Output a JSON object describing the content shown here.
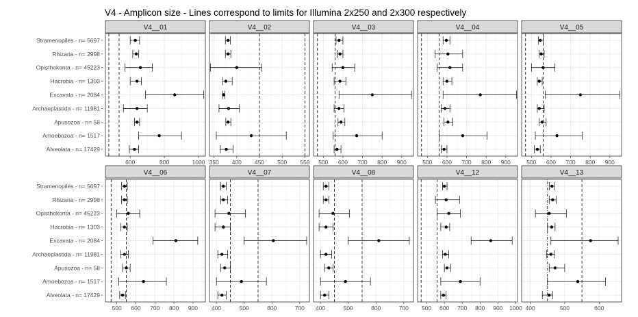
{
  "chart_data": {
    "type": "errorbar-facet",
    "title": "V4 - Amplicon size - Lines correspond to limits for Illumina 2x250 and 2x300 respectively",
    "categories": [
      "Stramenopiles - n= 5697",
      "Rhizaria - n= 2998",
      "Opisthokonta - n= 45223",
      "Hacrobia - n= 1303",
      "Excavata - n= 2084",
      "Archaeplastida - n= 11981",
      "Apusozoa - n= 58",
      "Amoebozoa - n= 1517",
      "Alveolata - n= 17429"
    ],
    "grid": true,
    "panels": [
      {
        "name": "V4__01",
        "xlim": [
          455,
          1040
        ],
        "xticks": [
          600,
          800,
          1000
        ],
        "xtick_labels": [
          "600",
          "800",
          "1000"
        ],
        "vlines": [
          {
            "x": 475,
            "style": "dashed"
          },
          {
            "x": 535,
            "style": "dashed"
          }
        ],
        "mean": [
          630,
          635,
          660,
          640,
          860,
          640,
          640,
          770,
          625
        ],
        "min": [
          600,
          615,
          570,
          600,
          690,
          560,
          625,
          650,
          595
        ],
        "max": [
          655,
          650,
          730,
          665,
          1030,
          700,
          655,
          900,
          650
        ]
      },
      {
        "name": "V4__02",
        "xlim": [
          340,
          560
        ],
        "xticks": [
          350,
          400,
          450,
          500,
          550
        ],
        "xtick_labels": [
          "350",
          "400",
          "450",
          "500",
          "550"
        ],
        "vlines": [
          {
            "x": 450,
            "style": "dashed"
          },
          {
            "x": 550,
            "style": "dashed"
          }
        ],
        "mean": [
          381,
          381,
          400,
          376,
          371,
          382,
          381,
          432,
          377
        ],
        "min": [
          375,
          375,
          342,
          369,
          369,
          361,
          376,
          355,
          364
        ],
        "max": [
          386,
          387,
          455,
          390,
          374,
          406,
          387,
          509,
          392
        ]
      },
      {
        "name": "V4__03",
        "xlim": [
          450,
          960
        ],
        "xticks": [
          500,
          600,
          700,
          800,
          900
        ],
        "xtick_labels": [
          "500",
          "600",
          "700",
          "800",
          "900"
        ],
        "vlines": [
          {
            "x": 470,
            "style": "dashed"
          },
          {
            "x": 560,
            "style": "dashed"
          }
        ],
        "mean": [
          580,
          585,
          600,
          585,
          750,
          580,
          590,
          670,
          570
        ],
        "min": [
          565,
          570,
          545,
          555,
          580,
          555,
          575,
          550,
          555
        ],
        "max": [
          600,
          600,
          660,
          615,
          950,
          605,
          610,
          800,
          590
        ]
      },
      {
        "name": "V4__04",
        "xlim": [
          450,
          960
        ],
        "xticks": [
          500,
          600,
          700,
          800,
          900
        ],
        "xtick_labels": [
          "500",
          "600",
          "700",
          "800",
          "900"
        ],
        "vlines": [
          {
            "x": 470,
            "style": "dashed"
          },
          {
            "x": 560,
            "style": "dashed"
          }
        ],
        "mean": [
          597,
          605,
          615,
          600,
          770,
          590,
          605,
          680,
          585
        ],
        "min": [
          580,
          540,
          550,
          580,
          580,
          570,
          585,
          560,
          570
        ],
        "max": [
          615,
          680,
          680,
          625,
          955,
          615,
          630,
          805,
          600
        ]
      },
      {
        "name": "V4__05",
        "xlim": [
          450,
          960
        ],
        "xticks": [
          500,
          600,
          700,
          800,
          900
        ],
        "xtick_labels": [
          "500",
          "600",
          "700",
          "800",
          "900"
        ],
        "vlines": [
          {
            "x": 470,
            "style": "dashed"
          },
          {
            "x": 560,
            "style": "dashed"
          }
        ],
        "mean": [
          545,
          550,
          560,
          540,
          750,
          540,
          555,
          630,
          530
        ],
        "min": [
          535,
          540,
          500,
          530,
          570,
          530,
          540,
          520,
          515
        ],
        "max": [
          560,
          565,
          620,
          555,
          950,
          565,
          575,
          760,
          545
        ]
      },
      {
        "name": "V4__06",
        "xlim": [
          440,
          965
        ],
        "xticks": [
          500,
          600,
          700,
          800,
          900
        ],
        "xtick_labels": [
          "500",
          "600",
          "700",
          "800",
          "900"
        ],
        "vlines": [
          {
            "x": 470,
            "style": "dashed"
          },
          {
            "x": 550,
            "style": "dashed"
          }
        ],
        "mean": [
          540,
          540,
          560,
          540,
          810,
          540,
          550,
          640,
          530
        ],
        "min": [
          525,
          525,
          500,
          520,
          690,
          520,
          530,
          510,
          515
        ],
        "max": [
          555,
          555,
          620,
          555,
          925,
          560,
          570,
          760,
          545
        ]
      },
      {
        "name": "V4__07",
        "xlim": [
          375,
          735
        ],
        "xticks": [
          400,
          500,
          600,
          700
        ],
        "xtick_labels": [
          "400",
          "500",
          "600",
          "700"
        ],
        "vlines": [
          {
            "x": 450,
            "style": "dashed"
          },
          {
            "x": 550,
            "style": "dashed"
          }
        ],
        "mean": [
          425,
          425,
          445,
          425,
          605,
          420,
          430,
          490,
          420
        ],
        "min": [
          415,
          415,
          395,
          395,
          500,
          405,
          415,
          400,
          405
        ],
        "max": [
          435,
          440,
          505,
          450,
          725,
          440,
          450,
          580,
          435
        ]
      },
      {
        "name": "V4__08",
        "xlim": [
          375,
          735
        ],
        "xticks": [
          400,
          500,
          600,
          700
        ],
        "xtick_labels": [
          "400",
          "500",
          "600",
          "700"
        ],
        "vlines": [
          {
            "x": 450,
            "style": "dashed"
          },
          {
            "x": 550,
            "style": "dashed"
          }
        ],
        "mean": [
          420,
          420,
          445,
          420,
          610,
          420,
          430,
          490,
          415
        ],
        "min": [
          410,
          410,
          395,
          395,
          500,
          400,
          415,
          400,
          400
        ],
        "max": [
          430,
          430,
          505,
          445,
          720,
          440,
          445,
          580,
          430
        ]
      },
      {
        "name": "V4__12",
        "xlim": [
          450,
          1010
        ],
        "xticks": [
          500,
          600,
          700,
          800,
          900,
          1000
        ],
        "xtick_labels": [
          "500",
          "600",
          "700",
          "800",
          "900",
          "1000"
        ],
        "vlines": [
          {
            "x": 470,
            "style": "dashed"
          },
          {
            "x": 560,
            "style": "dashed"
          }
        ],
        "mean": [
          600,
          610,
          625,
          610,
          860,
          605,
          615,
          690,
          595
        ],
        "min": [
          590,
          550,
          560,
          580,
          750,
          590,
          600,
          580,
          580
        ],
        "max": [
          615,
          685,
          690,
          630,
          980,
          625,
          635,
          800,
          610
        ]
      },
      {
        "name": "V4__13",
        "xlim": [
          375,
          665
        ],
        "xticks": [
          400,
          500,
          600
        ],
        "xtick_labels": [
          "400",
          "500",
          "600"
        ],
        "vlines": [
          {
            "x": 450,
            "style": "dotdash"
          },
          {
            "x": 550,
            "style": "dashed"
          }
        ],
        "mean": [
          463,
          465,
          455,
          462,
          575,
          460,
          472,
          538,
          455
        ],
        "min": [
          455,
          455,
          415,
          450,
          460,
          447,
          455,
          450,
          435
        ],
        "max": [
          470,
          475,
          505,
          472,
          655,
          470,
          500,
          618,
          465
        ]
      }
    ]
  },
  "colors": {
    "background": "#ffffff",
    "panel_border": "#333333",
    "strip_fill": "#d9d9d9",
    "grid_major": "#ebebeb",
    "grid_minor": "#f5f5f5",
    "point": "#000000",
    "label_text": "#4d4d4d"
  }
}
